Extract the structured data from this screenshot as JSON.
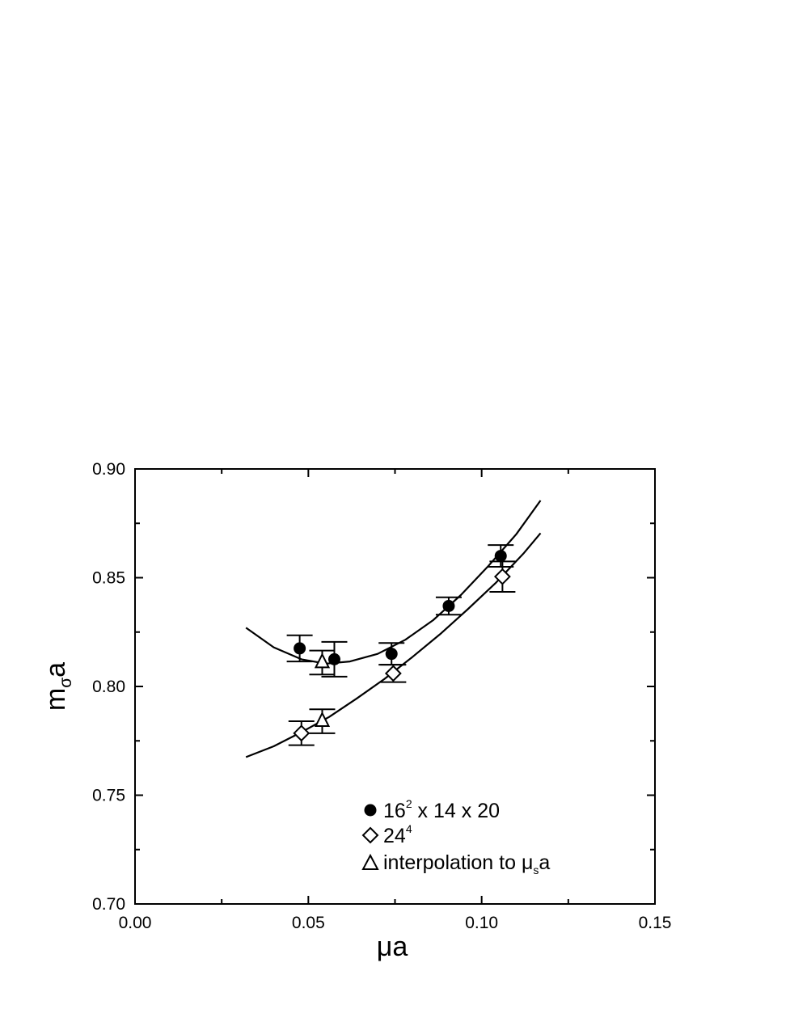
{
  "chart_data": {
    "type": "scatter",
    "title": "",
    "xlabel": {
      "main": "μa"
    },
    "ylabel": {
      "main": "m",
      "subscript": "σ",
      "tail": "a"
    },
    "xlim": [
      0.0,
      0.15
    ],
    "ylim": [
      0.7,
      0.9
    ],
    "x_ticks": [
      "0.00",
      "0.05",
      "0.10",
      "0.15"
    ],
    "y_ticks": [
      "0.70",
      "0.75",
      "0.80",
      "0.85",
      "0.90"
    ],
    "grid": false,
    "legend_placement": "bottom-center",
    "series": [
      {
        "name": "16² x 14 x 20",
        "legend": {
          "base": "16",
          "sup": "2",
          "rest": " x 14 x 20"
        },
        "marker": "filled-circle",
        "points": [
          {
            "x": 0.0475,
            "y": 0.8175,
            "err": 0.006
          },
          {
            "x": 0.0575,
            "y": 0.8125,
            "err": 0.008
          },
          {
            "x": 0.074,
            "y": 0.815,
            "err": 0.005
          },
          {
            "x": 0.0905,
            "y": 0.837,
            "err": 0.004
          },
          {
            "x": 0.1055,
            "y": 0.86,
            "err": 0.005
          }
        ],
        "fit_curve": {
          "x": [
            0.032,
            0.04,
            0.048,
            0.055,
            0.062,
            0.07,
            0.078,
            0.086,
            0.094,
            0.102,
            0.11,
            0.117
          ],
          "y": [
            0.827,
            0.818,
            0.8125,
            0.8105,
            0.8115,
            0.815,
            0.8215,
            0.8305,
            0.842,
            0.8555,
            0.87,
            0.8855
          ]
        }
      },
      {
        "name": "24⁴",
        "legend": {
          "base": "24",
          "sup": "4",
          "rest": ""
        },
        "marker": "open-diamond",
        "points": [
          {
            "x": 0.048,
            "y": 0.7785,
            "err": 0.0055
          },
          {
            "x": 0.0745,
            "y": 0.806,
            "err": 0.004
          },
          {
            "x": 0.106,
            "y": 0.8505,
            "err": 0.007
          }
        ],
        "fit_curve": {
          "x": [
            0.032,
            0.04,
            0.048,
            0.056,
            0.064,
            0.072,
            0.08,
            0.088,
            0.096,
            0.104,
            0.112,
            0.117
          ],
          "y": [
            0.7675,
            0.7725,
            0.779,
            0.786,
            0.7945,
            0.8035,
            0.8135,
            0.824,
            0.8355,
            0.8475,
            0.861,
            0.8705
          ]
        }
      },
      {
        "name": "interpolation to μsa",
        "legend": {
          "base": "interpolation to ",
          "mu": "μ",
          "sub": "s",
          "rest": "a"
        },
        "marker": "open-triangle",
        "points": [
          {
            "x": 0.054,
            "y": 0.811,
            "err": 0.0055
          },
          {
            "x": 0.054,
            "y": 0.784,
            "err": 0.0055
          }
        ]
      }
    ],
    "colors": {
      "line": "#000000",
      "background": "#ffffff"
    }
  }
}
